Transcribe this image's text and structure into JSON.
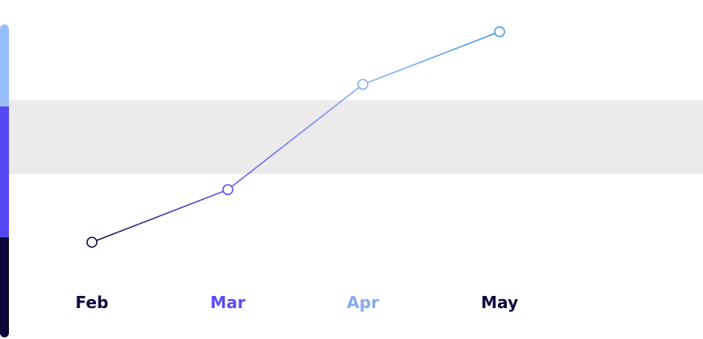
{
  "chart_data": {
    "type": "line",
    "categories": [
      "Feb",
      "Mar",
      "Apr",
      "May"
    ],
    "values": [
      1,
      2,
      4,
      5
    ],
    "ylim": [
      0,
      6
    ],
    "band": [
      2.3,
      3.7
    ],
    "point_colors": [
      "#0d0b3f",
      "#5b4ef5",
      "#85acf0",
      "#3f9ae8"
    ],
    "label_colors": [
      "#0d0b3f",
      "#5b4ef5",
      "#85acf0",
      "#0d0b3f"
    ],
    "band_color": "#ebebeb",
    "legend_colors": [
      "#98bdfb",
      "#5448f5",
      "#0b0937"
    ]
  }
}
